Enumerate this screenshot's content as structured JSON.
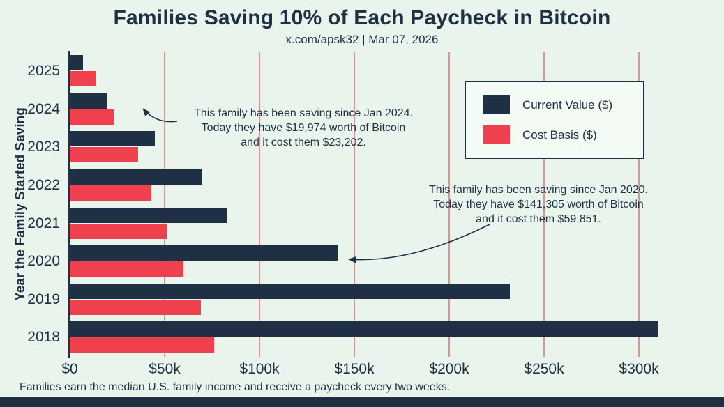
{
  "header": {
    "title": "Families Saving 10% of Each Paycheck in Bitcoin",
    "subtitle": "x.com/apsk32 | Mar 07, 2026"
  },
  "chart_data": {
    "type": "bar",
    "orientation": "horizontal",
    "title": "Families Saving 10% of Each Paycheck in Bitcoin",
    "subtitle": "x.com/apsk32 | Mar 07, 2026",
    "xlabel": "",
    "ylabel": "Year the Family Started Saving",
    "categories": [
      "2025",
      "2024",
      "2023",
      "2022",
      "2021",
      "2020",
      "2019",
      "2018"
    ],
    "series": [
      {
        "name": "Current Value ($)",
        "color": "#1f3044",
        "values": [
          7000,
          19974,
          45000,
          70000,
          83000,
          141305,
          232000,
          310000
        ]
      },
      {
        "name": "Cost Basis ($)",
        "color": "#ee404d",
        "values": [
          13500,
          23202,
          36000,
          43000,
          51500,
          59851,
          69000,
          76000
        ]
      }
    ],
    "x_ticks": [
      {
        "value": 0,
        "label": "$0"
      },
      {
        "value": 50000,
        "label": "$50k"
      },
      {
        "value": 100000,
        "label": "$100k"
      },
      {
        "value": 150000,
        "label": "$150k"
      },
      {
        "value": 200000,
        "label": "$200k"
      },
      {
        "value": 250000,
        "label": "$250k"
      },
      {
        "value": 300000,
        "label": "$300k"
      }
    ],
    "xlim": [
      0,
      335000
    ],
    "grid": "vertical",
    "gridline_color": "#e59191",
    "legend_position": "upper right",
    "annotations": [
      {
        "target_year": "2024",
        "text": "This family has been saving since Jan 2024. Today they have $19,974 worth of Bitcoin and it cost them $23,202."
      },
      {
        "target_year": "2020",
        "text": "This family has been saving since Jan 2020. Today they have $141,305 worth of Bitcoin and it cost them $59,851."
      }
    ]
  },
  "legend": {
    "items": [
      {
        "label": "Current Value ($)",
        "color": "#1f3044"
      },
      {
        "label": "Cost Basis ($)",
        "color": "#ee404d"
      }
    ]
  },
  "annotations": [
    {
      "lines": [
        "This family has been saving since Jan 2024.",
        "Today they have $19,974 worth of Bitcoin",
        "and it cost them $23,202."
      ]
    },
    {
      "lines": [
        "This family has been saving since Jan 2020.",
        "Today they have $141,305 worth of Bitcoin",
        "and it cost them $59,851."
      ]
    }
  ],
  "footnote": "Families earn the median U.S. family income and receive a paycheck every two weeks.",
  "colors": {
    "background": "#e9f5ec",
    "text": "#1f3044",
    "bar_current": "#1f3044",
    "bar_cost": "#ee404d",
    "gridline": "#e59191",
    "bottom_strip": "#1f3044"
  }
}
